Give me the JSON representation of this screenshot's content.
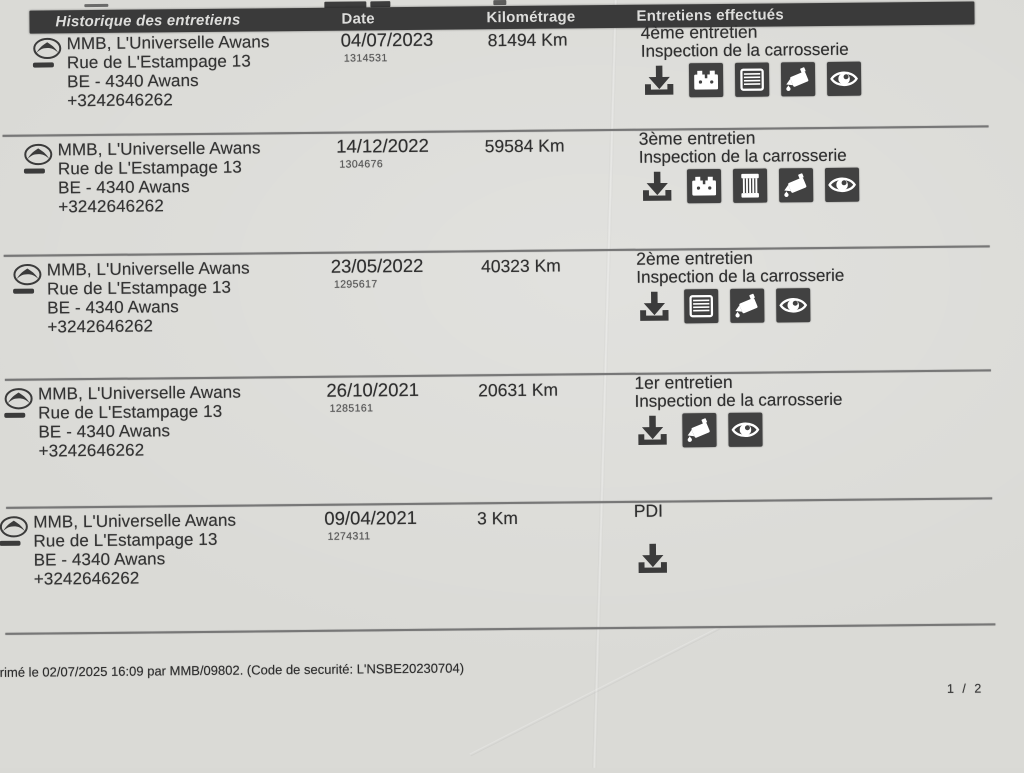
{
  "document": {
    "title_bar": {
      "history": "Historique des entretiens",
      "date": "Date",
      "kilometrage": "Kilométrage",
      "services": "Entretiens effectués"
    },
    "dealer": {
      "name": "MMB, L'Universelle Awans",
      "address_line1": "Rue de L'Estampage 13",
      "address_line2": "BE - 4340 Awans",
      "phone": "+3242646262"
    },
    "rows": [
      {
        "date": "04/07/2023",
        "ref": "1314531",
        "km": "81494 Km",
        "service": "4ème entretien",
        "service_detail": "Inspection de la carrosserie",
        "icons": [
          "download-icon",
          "battery-icon",
          "air-filter-icon",
          "oil-can-icon",
          "eye-icon"
        ]
      },
      {
        "date": "14/12/2022",
        "ref": "1304676",
        "km": "59584 Km",
        "service": "3ème entretien",
        "service_detail": "Inspection de la carrosserie",
        "icons": [
          "download-icon",
          "battery-icon",
          "oil-filter-icon",
          "oil-can-icon",
          "eye-icon"
        ]
      },
      {
        "date": "23/05/2022",
        "ref": "1295617",
        "km": "40323 Km",
        "service": "2ème entretien",
        "service_detail": "Inspection de la carrosserie",
        "icons": [
          "download-icon",
          "air-filter-icon",
          "oil-can-icon",
          "eye-icon"
        ]
      },
      {
        "date": "26/10/2021",
        "ref": "1285161",
        "km": "20631 Km",
        "service": "1er entretien",
        "service_detail": "Inspection de la carrosserie",
        "icons": [
          "download-icon",
          "oil-can-icon",
          "eye-icon"
        ]
      },
      {
        "date": "09/04/2021",
        "ref": "1274311",
        "km": "3 Km",
        "service": "PDI",
        "service_detail": "",
        "icons": [
          "download-icon"
        ]
      }
    ],
    "footer": {
      "note": "rimé le 02/07/2025 16:09 par MMB/09802. (Code de securité: L'NSBE20230704)",
      "page": "1 / 2"
    }
  }
}
